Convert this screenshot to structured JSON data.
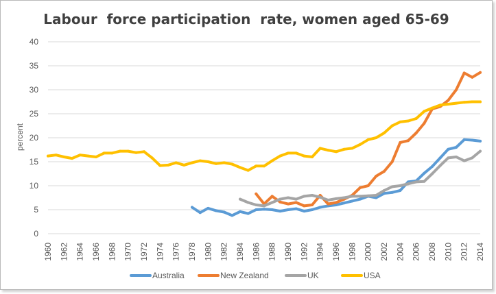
{
  "chart_data": {
    "type": "line",
    "title": "Labour  force participation  rate, women aged 65-69",
    "xlabel": "",
    "ylabel": "percent",
    "ylim": [
      0,
      40
    ],
    "yticks": [
      0,
      5,
      10,
      15,
      20,
      25,
      30,
      35,
      40
    ],
    "xlim": [
      1960,
      2014
    ],
    "xticks": [
      1960,
      1962,
      1964,
      1966,
      1968,
      1970,
      1972,
      1974,
      1976,
      1978,
      1980,
      1982,
      1984,
      1986,
      1988,
      1990,
      1992,
      1994,
      1996,
      1998,
      2000,
      2002,
      2004,
      2006,
      2008,
      2010,
      2012,
      2014
    ],
    "grid": true,
    "legend_position": "bottom",
    "series": [
      {
        "name": "Australia",
        "color": "#5b9bd5",
        "x": [
          1978,
          1979,
          1980,
          1981,
          1982,
          1983,
          1984,
          1985,
          1986,
          1987,
          1988,
          1989,
          1990,
          1991,
          1992,
          1993,
          1994,
          1995,
          1996,
          1997,
          1998,
          1999,
          2000,
          2001,
          2002,
          2003,
          2004,
          2005,
          2006,
          2007,
          2008,
          2009,
          2010,
          2011,
          2012,
          2013,
          2014
        ],
        "values": [
          5.5,
          4.4,
          5.3,
          4.8,
          4.5,
          3.8,
          4.6,
          4.2,
          5.0,
          5.1,
          5.0,
          4.7,
          5.0,
          5.2,
          4.7,
          5.0,
          5.5,
          5.8,
          6.0,
          6.4,
          6.8,
          7.2,
          7.8,
          7.5,
          8.4,
          8.6,
          9.0,
          10.8,
          11.0,
          12.6,
          14.0,
          15.8,
          17.6,
          18.0,
          19.6,
          19.5,
          19.3
        ]
      },
      {
        "name": "New Zealand",
        "color": "#ed7d31",
        "x": [
          1986,
          1987,
          1988,
          1989,
          1990,
          1991,
          1992,
          1993,
          1994,
          1995,
          1996,
          1997,
          1998,
          1999,
          2000,
          2001,
          2002,
          2003,
          2004,
          2005,
          2006,
          2007,
          2008,
          2009,
          2010,
          2011,
          2012,
          2013,
          2014
        ],
        "values": [
          8.3,
          6.2,
          7.8,
          6.6,
          6.2,
          6.5,
          5.8,
          6.0,
          8.0,
          6.2,
          6.5,
          7.2,
          8.0,
          9.6,
          10.0,
          12.0,
          13.0,
          15.0,
          19.0,
          19.4,
          21.0,
          23.0,
          26.0,
          26.5,
          27.8,
          30.0,
          33.5,
          32.6,
          33.6
        ]
      },
      {
        "name": "UK",
        "color": "#a5a5a5",
        "x": [
          1984,
          1985,
          1986,
          1987,
          1988,
          1989,
          1990,
          1991,
          1992,
          1993,
          1994,
          1995,
          1996,
          1997,
          1998,
          1999,
          2000,
          2001,
          2002,
          2003,
          2004,
          2005,
          2006,
          2007,
          2008,
          2009,
          2010,
          2011,
          2012,
          2013,
          2014
        ],
        "values": [
          7.2,
          6.5,
          6.0,
          5.8,
          6.5,
          7.2,
          7.5,
          7.2,
          7.8,
          8.0,
          7.6,
          7.0,
          7.3,
          7.5,
          7.8,
          7.8,
          7.9,
          8.0,
          9.0,
          9.8,
          10.0,
          10.4,
          10.8,
          10.9,
          12.5,
          14.2,
          15.8,
          16.0,
          15.2,
          15.8,
          17.2
        ]
      },
      {
        "name": "USA",
        "color": "#ffc000",
        "x": [
          1960,
          1961,
          1962,
          1963,
          1964,
          1965,
          1966,
          1967,
          1968,
          1969,
          1970,
          1971,
          1972,
          1973,
          1974,
          1975,
          1976,
          1977,
          1978,
          1979,
          1980,
          1981,
          1982,
          1983,
          1984,
          1985,
          1986,
          1987,
          1988,
          1989,
          1990,
          1991,
          1992,
          1993,
          1994,
          1995,
          1996,
          1997,
          1998,
          1999,
          2000,
          2001,
          2002,
          2003,
          2004,
          2005,
          2006,
          2007,
          2008,
          2009,
          2010,
          2011,
          2012,
          2013,
          2014
        ],
        "values": [
          16.2,
          16.4,
          16.0,
          15.7,
          16.4,
          16.2,
          16.0,
          16.8,
          16.8,
          17.2,
          17.2,
          16.9,
          17.1,
          15.8,
          14.2,
          14.3,
          14.8,
          14.3,
          14.8,
          15.2,
          15.0,
          14.6,
          14.8,
          14.5,
          13.8,
          13.2,
          14.1,
          14.1,
          15.2,
          16.2,
          16.8,
          16.8,
          16.2,
          16.0,
          17.8,
          17.4,
          17.1,
          17.6,
          17.8,
          18.6,
          19.6,
          20.0,
          21.0,
          22.5,
          23.3,
          23.5,
          24.0,
          25.5,
          26.2,
          26.8,
          27.0,
          27.2,
          27.4,
          27.5,
          27.5
        ]
      }
    ]
  }
}
